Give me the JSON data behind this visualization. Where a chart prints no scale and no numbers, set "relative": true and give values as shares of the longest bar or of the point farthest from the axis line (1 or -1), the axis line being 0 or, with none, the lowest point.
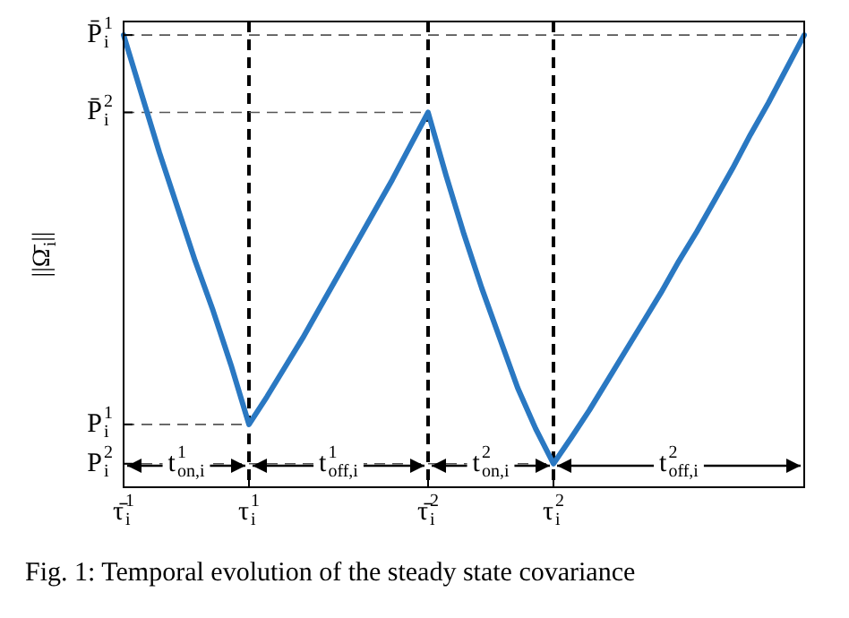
{
  "chart_data": {
    "type": "line",
    "relative": true,
    "ylabel": "||Ω̄$_{i}$||",
    "categories": [
      "τ̄$_{i}$$^{1}$",
      null,
      null,
      null,
      null,
      null,
      null,
      "τ$_{i}$$^{1}$",
      null,
      null,
      null,
      null,
      null,
      null,
      null,
      null,
      null,
      "τ̄$_{i}$$^{2}$",
      null,
      null,
      null,
      null,
      null,
      null,
      "τ$_{i}$$^{2}$",
      null,
      null,
      null,
      null,
      null,
      null,
      null,
      null,
      null,
      null,
      null,
      null,
      null,
      null
    ],
    "series": [
      {
        "color": "#2a78c2",
        "values": [
          1,
          0.87,
          0.74,
          0.62,
          0.5,
          0.39,
          0.27,
          0.139,
          0.2,
          0.265,
          0.33,
          0.4,
          0.47,
          0.54,
          0.61,
          0.68,
          0.755,
          0.829,
          0.69,
          0.56,
          0.44,
          0.33,
          0.22,
          0.13,
          0.052,
          0.11,
          0.17,
          0.235,
          0.3,
          0.365,
          0.43,
          0.5,
          0.565,
          0.635,
          0.705,
          0.78,
          0.85,
          0.925,
          1
        ]
      }
    ],
    "ref_lines": [
      {
        "axis": "x",
        "value": "τ$_{i}$$^{1}$",
        "line_style": "dashed",
        "color": "#000000"
      },
      {
        "axis": "x",
        "value": "τ̄$_{i}$$^{2}$",
        "line_style": "dashed",
        "color": "#000000"
      },
      {
        "axis": "x",
        "value": "τ$_{i}$$^{2}$",
        "line_style": "dashed",
        "color": "#000000"
      },
      {
        "axis": "y",
        "value": 1,
        "label": "P̄$_{i}$$^{1}$",
        "line_style": "dashed",
        "color": "#555555"
      },
      {
        "axis": "y",
        "value": 0.829,
        "label": "P̄$_{i}$$^{2}$",
        "line_style": "dashed",
        "color": "#555555"
      },
      {
        "axis": "y",
        "value": 0.139,
        "label": "P$_{i}$$^{1}$",
        "line_style": "dashed",
        "color": "#555555"
      },
      {
        "axis": "y",
        "value": 0.052,
        "label": "P$_{i}$$^{2}$",
        "line_style": "dashed",
        "color": "#555555"
      }
    ],
    "annotations": [
      "t$_{on,i}$$^{1}$",
      "t$_{off,i}$$^{1}$",
      "t$_{on,i}$$^{2}$",
      "t$_{off,i}$$^{2}$",
      "Fig. 1: Temporal evolution of the steady state covariance"
    ],
    "legend": false,
    "marker": "none",
    "line_style": "solid"
  }
}
